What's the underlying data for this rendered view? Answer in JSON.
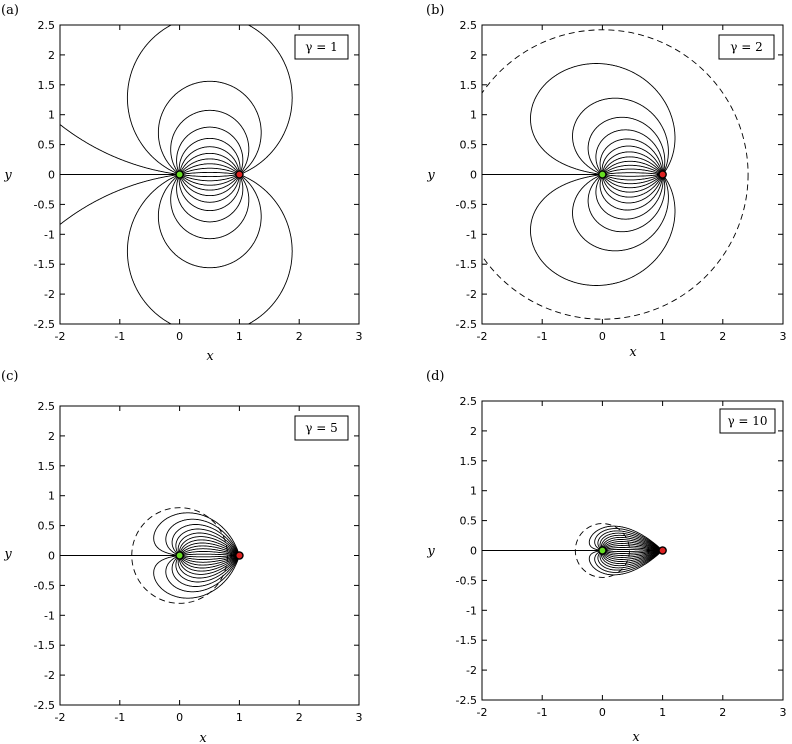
{
  "chart_data": [
    {
      "type": "line",
      "panel_label": "(a)",
      "gamma_label": "γ = 1",
      "gamma": 1,
      "xlabel": "x",
      "ylabel": "y",
      "xlim": [
        -2,
        3
      ],
      "ylim": [
        -2.5,
        2.5
      ],
      "xticks": [
        "-2",
        "-1",
        "0",
        "1",
        "2",
        "3"
      ],
      "yticks": [
        "2.5",
        "2",
        "1.5",
        "1",
        "0.5",
        "0",
        "-0.5",
        "-1",
        "-1.5",
        "-2",
        "-2.5"
      ],
      "points": [
        {
          "x": 0,
          "y": 0,
          "color": "#66dd22"
        },
        {
          "x": 1,
          "y": 0,
          "color": "#dd2222"
        }
      ],
      "boundary_circle": null
    },
    {
      "type": "line",
      "panel_label": "(b)",
      "gamma_label": "γ = 2",
      "gamma": 2,
      "xlabel": "x",
      "ylabel": "y",
      "xlim": [
        -2,
        3
      ],
      "ylim": [
        -2.5,
        2.5
      ],
      "xticks": [
        "-2",
        "-1",
        "0",
        "1",
        "2",
        "3"
      ],
      "yticks": [
        "2.5",
        "2",
        "1.5",
        "1",
        "0.5",
        "0",
        "-0.5",
        "-1",
        "-1.5",
        "-2",
        "-2.5"
      ],
      "points": [
        {
          "x": 0,
          "y": 0,
          "color": "#66dd22"
        },
        {
          "x": 1,
          "y": 0,
          "color": "#dd2222"
        }
      ],
      "boundary_circle": {
        "cx": 0,
        "cy": 0,
        "r": 2.42
      }
    },
    {
      "type": "line",
      "panel_label": "(c)",
      "gamma_label": "γ = 5",
      "gamma": 5,
      "xlabel": "x",
      "ylabel": "y",
      "xlim": [
        -2,
        3
      ],
      "ylim": [
        -2.5,
        2.5
      ],
      "xticks": [
        "-2",
        "-1",
        "0",
        "1",
        "2",
        "3"
      ],
      "yticks": [
        "2.5",
        "2",
        "1.5",
        "1",
        "0.5",
        "0",
        "-0.5",
        "-1",
        "-1.5",
        "-2",
        "-2.5"
      ],
      "points": [
        {
          "x": 0,
          "y": 0,
          "color": "#66dd22"
        },
        {
          "x": 1,
          "y": 0,
          "color": "#dd2222"
        }
      ],
      "boundary_circle": {
        "cx": 0,
        "cy": 0,
        "r": 0.8
      }
    },
    {
      "type": "line",
      "panel_label": "(d)",
      "gamma_label": "γ = 10",
      "gamma": 10,
      "xlabel": "x",
      "ylabel": "y",
      "xlim": [
        -2,
        3
      ],
      "ylim": [
        -2.5,
        2.5
      ],
      "xticks": [
        "-2",
        "-1",
        "0",
        "1",
        "2",
        "3"
      ],
      "yticks": [
        "2.5",
        "2",
        "1.5",
        "1",
        "0.5",
        "0",
        "-0.5",
        "-1",
        "-1.5",
        "-2",
        "-2.5"
      ],
      "points": [
        {
          "x": 0,
          "y": 0,
          "color": "#66dd22"
        },
        {
          "x": 1,
          "y": 0,
          "color": "#dd2222"
        }
      ],
      "boundary_circle": {
        "cx": 0,
        "cy": 0,
        "r": 0.45
      }
    }
  ]
}
